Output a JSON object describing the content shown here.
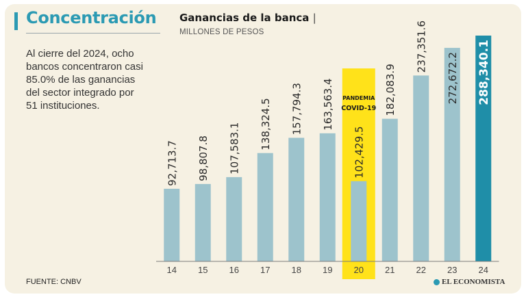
{
  "header": {
    "title": "Concentración",
    "description": "Al cierre del 2024, ocho bancos concentra­ron casi 85.0% de las ganancias del sector integrado por 51 insti­tuciones.",
    "source": "FUENTE: CNBV"
  },
  "brand": {
    "name": "EL ECONOMISTA"
  },
  "colors": {
    "background": "#f6f1e3",
    "bar": "#9dc3cc",
    "bar_highlight": "#1f8ea8",
    "pandemic_band": "#ffe21a",
    "accent": "#2b9ab3"
  },
  "chart_data": {
    "type": "bar",
    "title": "Ganancias de la banca",
    "title_separator": "|",
    "subtitle": "MILLONES DE PESOS",
    "xlabel": "",
    "ylabel": "",
    "categories": [
      "14",
      "15",
      "16",
      "17",
      "18",
      "19",
      "20",
      "21",
      "22",
      "23",
      "24"
    ],
    "values": [
      92713.7,
      98807.8,
      107583.1,
      138324.5,
      157794.3,
      163563.4,
      102429.5,
      182083.9,
      237351.6,
      272672.2,
      288340.1
    ],
    "value_labels": [
      "92,713.7",
      "98,807.8",
      "107,583.1",
      "138,324.5",
      "157,794.3",
      "163,563.4",
      "102,429.5",
      "182,083.9",
      "237,351.6",
      "272,672.2",
      "288,340.1"
    ],
    "ylim": [
      0,
      288340.1
    ],
    "highlight_index": 10,
    "annotation": {
      "category": "20",
      "lines": [
        "PANDEMIA",
        "COVID-19"
      ]
    },
    "grid": false
  }
}
